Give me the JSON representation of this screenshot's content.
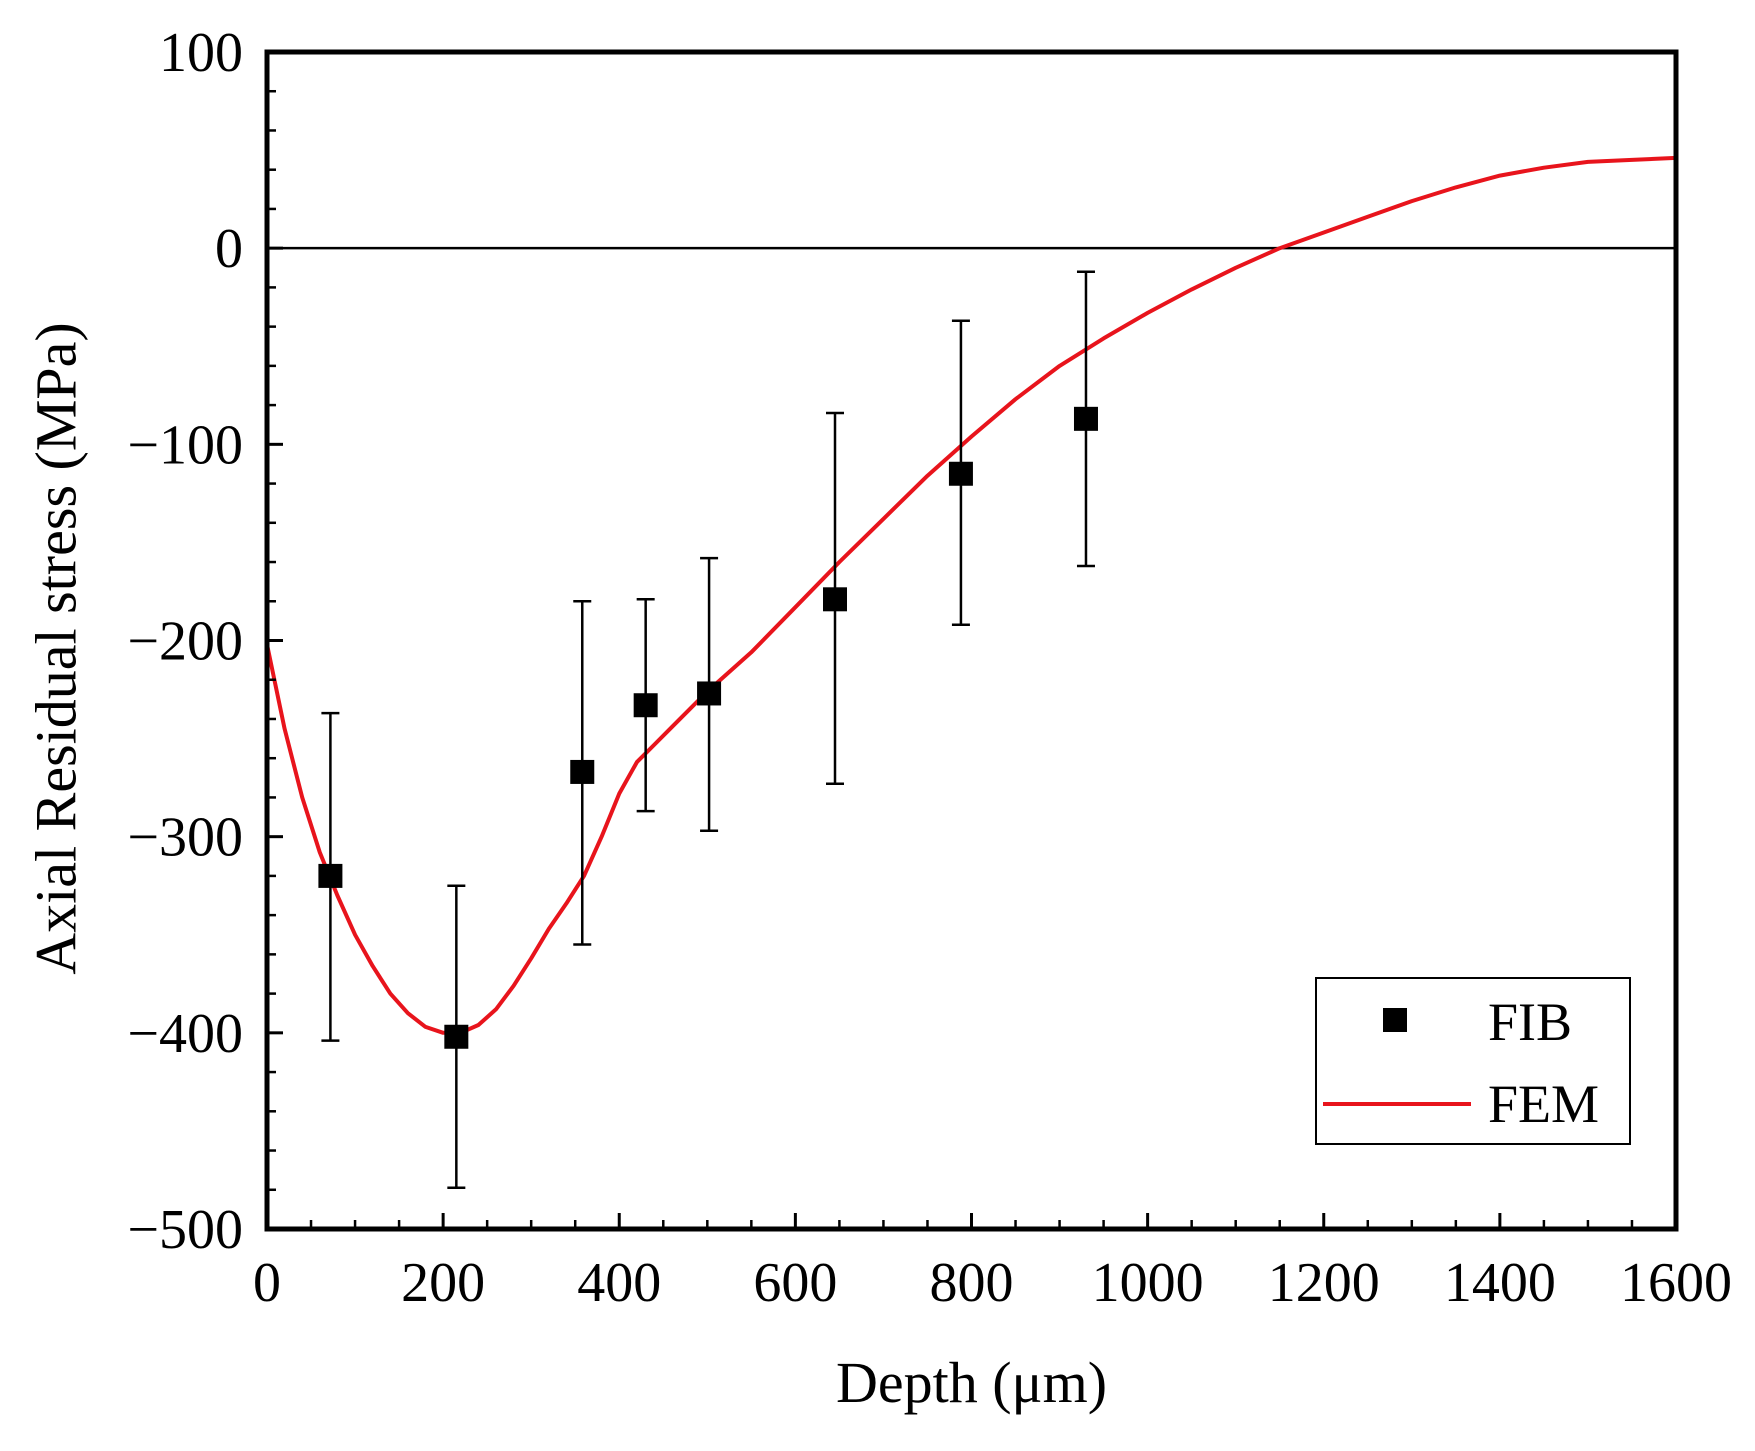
{
  "chart_data": {
    "type": "scatter",
    "title": "",
    "xlabel": "Depth (μm)",
    "ylabel": "Axial Residual stress (MPa)",
    "xlim": [
      0,
      1600
    ],
    "ylim": [
      -500,
      100
    ],
    "xticks": [
      0,
      200,
      400,
      600,
      800,
      1000,
      1200,
      1400,
      1600
    ],
    "xtick_labels": [
      "0",
      "200",
      "400",
      "600",
      "800",
      "1000",
      "1200",
      "1400",
      "1600"
    ],
    "yticks": [
      100,
      0,
      -100,
      -200,
      -300,
      -400,
      -500
    ],
    "ytick_labels": [
      "100",
      "0",
      "−100",
      "−200",
      "−300",
      "−400",
      "−500"
    ],
    "zero_line": true,
    "legend_position": "bottom-right",
    "series": [
      {
        "name": "FIB",
        "kind": "scatter-errorbar",
        "marker": "square",
        "color": "#000000",
        "points": [
          {
            "x": 72,
            "y": -320,
            "err_low": -404,
            "err_high": -237
          },
          {
            "x": 215,
            "y": -402,
            "err_low": -479,
            "err_high": -325
          },
          {
            "x": 358,
            "y": -267,
            "err_low": -355,
            "err_high": -180
          },
          {
            "x": 430,
            "y": -233,
            "err_low": -287,
            "err_high": -179
          },
          {
            "x": 502,
            "y": -227,
            "err_low": -297,
            "err_high": -158
          },
          {
            "x": 645,
            "y": -179,
            "err_low": -273,
            "err_high": -84
          },
          {
            "x": 788,
            "y": -115,
            "err_low": -192,
            "err_high": -37
          },
          {
            "x": 930,
            "y": -87,
            "err_low": -162,
            "err_high": -12
          }
        ]
      },
      {
        "name": "FEM",
        "kind": "line",
        "color": "#e8141c",
        "points": [
          [
            0,
            -202
          ],
          [
            20,
            -245
          ],
          [
            40,
            -280
          ],
          [
            60,
            -308
          ],
          [
            80,
            -330
          ],
          [
            100,
            -350
          ],
          [
            120,
            -366
          ],
          [
            140,
            -380
          ],
          [
            160,
            -390
          ],
          [
            180,
            -397
          ],
          [
            200,
            -400
          ],
          [
            220,
            -400
          ],
          [
            240,
            -396
          ],
          [
            260,
            -388
          ],
          [
            280,
            -376
          ],
          [
            300,
            -362
          ],
          [
            320,
            -347
          ],
          [
            340,
            -334
          ],
          [
            360,
            -320
          ],
          [
            380,
            -300
          ],
          [
            400,
            -278
          ],
          [
            420,
            -262
          ],
          [
            440,
            -253
          ],
          [
            460,
            -244
          ],
          [
            480,
            -235
          ],
          [
            500,
            -226
          ],
          [
            550,
            -206
          ],
          [
            600,
            -183
          ],
          [
            650,
            -160
          ],
          [
            700,
            -138
          ],
          [
            750,
            -116
          ],
          [
            800,
            -96
          ],
          [
            850,
            -77
          ],
          [
            900,
            -60
          ],
          [
            950,
            -46
          ],
          [
            1000,
            -33
          ],
          [
            1050,
            -21
          ],
          [
            1100,
            -10
          ],
          [
            1150,
            0
          ],
          [
            1200,
            8
          ],
          [
            1250,
            16
          ],
          [
            1300,
            24
          ],
          [
            1350,
            31
          ],
          [
            1400,
            37
          ],
          [
            1450,
            41
          ],
          [
            1500,
            44
          ],
          [
            1550,
            45
          ],
          [
            1600,
            46
          ]
        ]
      }
    ]
  }
}
